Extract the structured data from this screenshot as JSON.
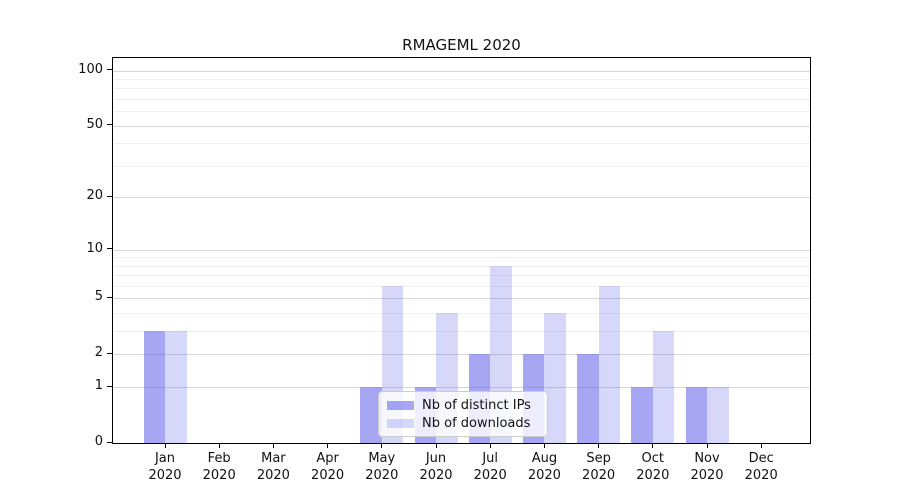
{
  "title": "RMAGEML 2020",
  "colors": {
    "bar_distinct_ips": "rgba(102,102,235,0.58)",
    "bar_downloads": "rgba(102,102,235,0.26)",
    "bar_base_hex": "#6666eb",
    "grid_major": "#d6d6d6",
    "grid_minor": "#efefef",
    "axis": "#000000",
    "text": "#111111",
    "legend_border": "#cccccc"
  },
  "chart_data": {
    "type": "bar",
    "title": "RMAGEML 2020",
    "categories": [
      "Jan",
      "Feb",
      "Mar",
      "Apr",
      "May",
      "Jun",
      "Jul",
      "Aug",
      "Sep",
      "Oct",
      "Nov",
      "Dec"
    ],
    "category_year": "2020",
    "series": [
      {
        "name": "Nb of distinct IPs",
        "color": "rgba(102,102,235,0.58)",
        "values": [
          3,
          0,
          0,
          0,
          1,
          1,
          2,
          2,
          2,
          1,
          1,
          0
        ]
      },
      {
        "name": "Nb of downloads",
        "color": "rgba(102,102,235,0.26)",
        "values": [
          3,
          0,
          0,
          0,
          6,
          4,
          8,
          4,
          6,
          3,
          1,
          0
        ]
      }
    ],
    "xlabel": "",
    "ylabel": "",
    "y_axis": {
      "scale": "log1p",
      "major_ticks": [
        0,
        1,
        2,
        5,
        10,
        20,
        50,
        100
      ],
      "minor_ticks": [
        3,
        4,
        6,
        7,
        8,
        9,
        30,
        40,
        60,
        70,
        80,
        90
      ],
      "top_value": 117,
      "ylim": [
        0,
        117
      ]
    },
    "grid": "on",
    "legend_position": "lower center"
  }
}
